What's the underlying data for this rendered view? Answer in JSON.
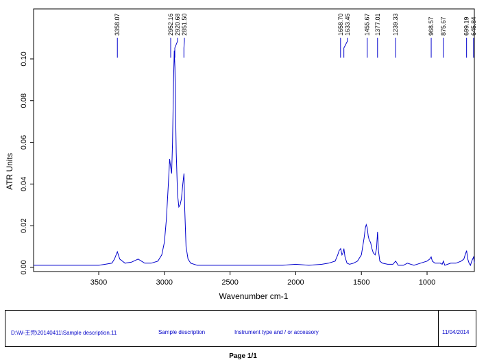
{
  "chart_data": {
    "type": "line",
    "title": "",
    "xlabel": "Wavenumber cm-1",
    "ylabel": "ATR Units",
    "xlim": [
      3996,
      640
    ],
    "ylim": [
      -0.002,
      0.124
    ],
    "x_ticks": [
      3500,
      3000,
      2500,
      2000,
      1500,
      1000
    ],
    "x_tick_labels": [
      "3500",
      "3000",
      "2500",
      "2000",
      "1500",
      "1000"
    ],
    "y_ticks": [
      0.0,
      0.02,
      0.04,
      0.06,
      0.08,
      0.1
    ],
    "y_tick_labels": [
      "0.00",
      "0.02",
      "0.04",
      "0.06",
      "0.08",
      "0.10"
    ],
    "grid": false,
    "line_color": "#0000cc",
    "series": [
      {
        "x": [
          3996,
          3900,
          3800,
          3700,
          3600,
          3500,
          3450,
          3400,
          3380,
          3358,
          3340,
          3300,
          3250,
          3200,
          3150,
          3100,
          3050,
          3020,
          3000,
          2985,
          2970,
          2960,
          2952,
          2945,
          2938,
          2930,
          2925,
          2920,
          2915,
          2910,
          2900,
          2890,
          2880,
          2870,
          2860,
          2851,
          2845,
          2835,
          2820,
          2800,
          2750,
          2700,
          2600,
          2500,
          2400,
          2300,
          2200,
          2100,
          2000,
          1900,
          1800,
          1750,
          1700,
          1680,
          1670,
          1658,
          1648,
          1640,
          1633,
          1625,
          1610,
          1590,
          1560,
          1530,
          1500,
          1480,
          1470,
          1463,
          1456,
          1448,
          1440,
          1430,
          1420,
          1410,
          1395,
          1385,
          1377,
          1370,
          1360,
          1340,
          1300,
          1260,
          1239,
          1220,
          1180,
          1150,
          1100,
          1050,
          1000,
          980,
          969,
          960,
          940,
          900,
          885,
          876,
          865,
          820,
          780,
          740,
          720,
          710,
          699,
          690,
          680,
          670,
          660,
          646,
          640
        ],
        "y": [
          0.001,
          0.001,
          0.001,
          0.001,
          0.001,
          0.001,
          0.0015,
          0.002,
          0.004,
          0.0075,
          0.004,
          0.002,
          0.0025,
          0.004,
          0.002,
          0.002,
          0.003,
          0.006,
          0.012,
          0.023,
          0.04,
          0.052,
          0.048,
          0.045,
          0.06,
          0.09,
          0.104,
          0.096,
          0.075,
          0.055,
          0.035,
          0.029,
          0.03,
          0.033,
          0.04,
          0.045,
          0.028,
          0.01,
          0.004,
          0.002,
          0.001,
          0.001,
          0.001,
          0.001,
          0.001,
          0.001,
          0.001,
          0.001,
          0.0015,
          0.001,
          0.0015,
          0.002,
          0.003,
          0.006,
          0.008,
          0.009,
          0.006,
          0.007,
          0.009,
          0.005,
          0.002,
          0.0015,
          0.002,
          0.003,
          0.006,
          0.014,
          0.019,
          0.0205,
          0.019,
          0.015,
          0.013,
          0.012,
          0.009,
          0.007,
          0.006,
          0.009,
          0.017,
          0.008,
          0.003,
          0.002,
          0.0015,
          0.0015,
          0.003,
          0.001,
          0.001,
          0.002,
          0.001,
          0.002,
          0.003,
          0.004,
          0.005,
          0.003,
          0.002,
          0.002,
          0.0015,
          0.003,
          0.001,
          0.002,
          0.002,
          0.003,
          0.004,
          0.006,
          0.008,
          0.004,
          0.002,
          0.001,
          0.003,
          0.005,
          0.002
        ]
      }
    ],
    "peak_labels": [
      {
        "label": "3358.07",
        "x": 3358.07
      },
      {
        "label": "2952.16",
        "x": 2952.16
      },
      {
        "label": "2920.68",
        "x": 2920.68
      },
      {
        "label": "2851.50",
        "x": 2851.5
      },
      {
        "label": "1658.70",
        "x": 1658.7
      },
      {
        "label": "1633.45",
        "x": 1633.45
      },
      {
        "label": "1455.67",
        "x": 1455.67
      },
      {
        "label": "1377.01",
        "x": 1377.01
      },
      {
        "label": "1239.33",
        "x": 1239.33
      },
      {
        "label": "968.57",
        "x": 968.57
      },
      {
        "label": "875.67",
        "x": 875.67
      },
      {
        "label": "699.19",
        "x": 699.19
      },
      {
        "label": "645.84",
        "x": 645.84
      }
    ]
  },
  "footer": {
    "file_path": "D:\\W-王完\\20140411\\Sample description.11",
    "sample_description": "Sample description",
    "instrument": "Instrument type and / or accessory",
    "date": "11/04/2014"
  },
  "page_label": "Page 1/1"
}
